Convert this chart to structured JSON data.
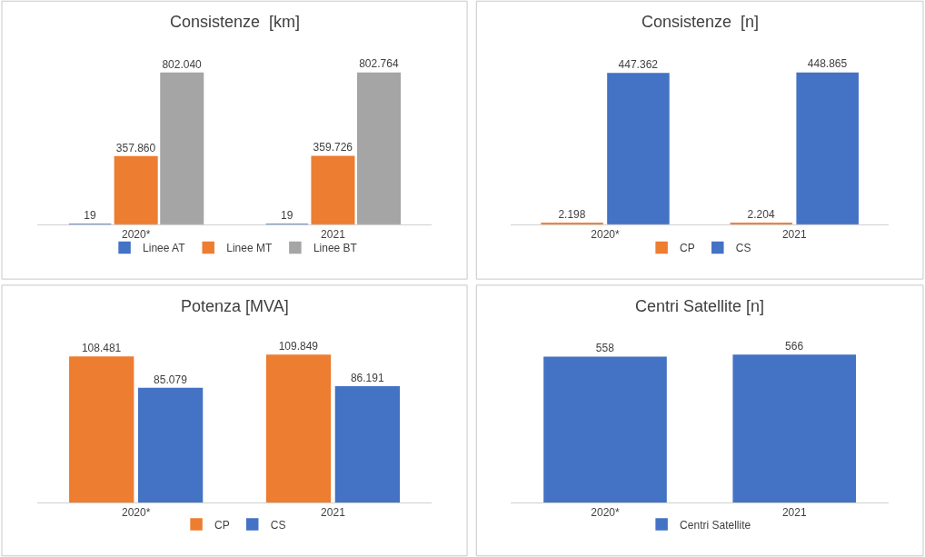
{
  "chart_data": [
    {
      "type": "bar",
      "title": "Consistenze  [km]",
      "legend": "bottom",
      "tick_labels": "x",
      "categories": [
        "2020*",
        "2021"
      ],
      "series": [
        {
          "name": "Linee AT",
          "color": "#4472c4",
          "values": [
            19,
            19
          ],
          "value_labels": [
            "19",
            "19"
          ]
        },
        {
          "name": "Linee MT",
          "color": "#ed7d31",
          "values": [
            357860,
            359726
          ],
          "value_labels": [
            "357.860",
            "359.726"
          ]
        },
        {
          "name": "Linee BT",
          "color": "#a5a5a5",
          "values": [
            802040,
            802764
          ],
          "value_labels": [
            "802.040",
            "802.764"
          ]
        }
      ]
    },
    {
      "type": "bar",
      "title": "Consistenze  [n]",
      "legend": "bottom",
      "tick_labels": "x",
      "categories": [
        "2020*",
        "2021"
      ],
      "series": [
        {
          "name": "CP",
          "color": "#ed7d31",
          "values": [
            2198,
            2204
          ],
          "value_labels": [
            "2.198",
            "2.204"
          ]
        },
        {
          "name": "CS",
          "color": "#4472c4",
          "values": [
            447362,
            448865
          ],
          "value_labels": [
            "447.362",
            "448.865"
          ]
        }
      ]
    },
    {
      "type": "bar",
      "title": "Potenza [MVA]",
      "legend": "bottom",
      "tick_labels": "x",
      "categories": [
        "2020*",
        "2021"
      ],
      "series": [
        {
          "name": "CP",
          "color": "#ed7d31",
          "values": [
            108481,
            109849
          ],
          "value_labels": [
            "108.481",
            "109.849"
          ]
        },
        {
          "name": "CS",
          "color": "#4472c4",
          "values": [
            85079,
            86191
          ],
          "value_labels": [
            "85.079",
            "86.191"
          ]
        }
      ]
    },
    {
      "type": "bar",
      "title": "Centri Satellite [n]",
      "legend": "bottom",
      "tick_labels": "x",
      "categories": [
        "2020*",
        "2021"
      ],
      "series": [
        {
          "name": "Centri Satellite",
          "color": "#4472c4",
          "values": [
            558,
            566
          ],
          "value_labels": [
            "558",
            "566"
          ]
        }
      ]
    }
  ]
}
